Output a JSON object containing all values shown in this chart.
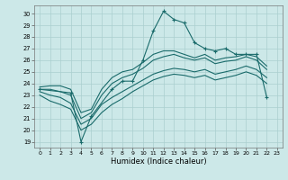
{
  "xlabel": "Humidex (Indice chaleur)",
  "bg_color": "#cce8e8",
  "grid_color": "#aacfcf",
  "line_color": "#1a6b6b",
  "xlim": [
    -0.5,
    23.5
  ],
  "ylim": [
    18.5,
    30.7
  ],
  "yticks": [
    19,
    20,
    21,
    22,
    23,
    24,
    25,
    26,
    27,
    28,
    29,
    30
  ],
  "xticks": [
    0,
    1,
    2,
    3,
    4,
    5,
    6,
    7,
    8,
    9,
    10,
    11,
    12,
    13,
    14,
    15,
    16,
    17,
    18,
    19,
    20,
    21,
    22,
    23
  ],
  "line_jagged_x": [
    0,
    3,
    4,
    5,
    7,
    8,
    9,
    10,
    11,
    12,
    13,
    14,
    15,
    16,
    17,
    18,
    19,
    20,
    21,
    22
  ],
  "line_jagged_y": [
    23.5,
    23.2,
    19.0,
    21.2,
    23.5,
    24.2,
    24.2,
    26.0,
    28.5,
    30.2,
    29.5,
    29.2,
    27.5,
    27.0,
    26.8,
    27.0,
    26.5,
    26.5,
    26.5,
    22.8
  ],
  "line_upper1_x": [
    0,
    1,
    2,
    3,
    4,
    5,
    6,
    7,
    8,
    9,
    10,
    11,
    12,
    13,
    14,
    15,
    16,
    17,
    18,
    19,
    20,
    21,
    22
  ],
  "line_upper1_y": [
    23.7,
    23.8,
    23.8,
    23.5,
    21.5,
    21.8,
    23.5,
    24.5,
    25.0,
    25.2,
    25.8,
    26.5,
    26.8,
    26.8,
    26.5,
    26.2,
    26.5,
    26.0,
    26.2,
    26.3,
    26.5,
    26.3,
    25.5
  ],
  "line_upper2_x": [
    0,
    1,
    2,
    3,
    4,
    5,
    6,
    7,
    8,
    9,
    10,
    11,
    12,
    13,
    14,
    15,
    16,
    17,
    18,
    19,
    20,
    21,
    22
  ],
  "line_upper2_y": [
    23.5,
    23.5,
    23.3,
    23.0,
    21.0,
    21.5,
    23.0,
    24.0,
    24.5,
    24.8,
    25.3,
    26.0,
    26.3,
    26.5,
    26.2,
    26.0,
    26.2,
    25.7,
    25.9,
    26.0,
    26.3,
    26.0,
    25.2
  ],
  "line_lower1_x": [
    0,
    1,
    2,
    3,
    4,
    5,
    6,
    7,
    8,
    9,
    10,
    11,
    12,
    13,
    14,
    15,
    16,
    17,
    18,
    19,
    20,
    21,
    22
  ],
  "line_lower1_y": [
    23.3,
    23.0,
    22.8,
    22.3,
    20.5,
    21.0,
    22.2,
    22.8,
    23.3,
    23.8,
    24.3,
    24.8,
    25.1,
    25.3,
    25.2,
    25.0,
    25.2,
    24.8,
    25.0,
    25.2,
    25.5,
    25.2,
    24.5
  ],
  "line_lower2_x": [
    0,
    1,
    2,
    3,
    4,
    5,
    6,
    7,
    8,
    9,
    10,
    11,
    12,
    13,
    14,
    15,
    16,
    17,
    18,
    19,
    20,
    21,
    22
  ],
  "line_lower2_y": [
    23.0,
    22.5,
    22.2,
    21.8,
    20.0,
    20.5,
    21.5,
    22.2,
    22.7,
    23.3,
    23.8,
    24.3,
    24.6,
    24.8,
    24.7,
    24.5,
    24.7,
    24.3,
    24.5,
    24.7,
    25.0,
    24.7,
    24.0
  ]
}
